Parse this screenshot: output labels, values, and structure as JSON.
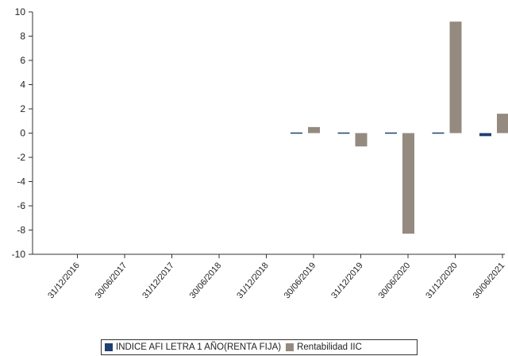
{
  "chart_data": {
    "type": "bar",
    "categories": [
      "31/12/2016",
      "30/06/2017",
      "31/12/2017",
      "30/06/2018",
      "31/12/2018",
      "30/06/2019",
      "31/12/2019",
      "30/06/2020",
      "31/12/2020",
      "30/06/2021"
    ],
    "series": [
      {
        "name": "INDICE AFI LETRA 1 AÑO(RENTA FIJA)",
        "color": "#1f3f6e",
        "values": [
          null,
          null,
          null,
          null,
          null,
          0.0,
          0.05,
          0.05,
          0.0,
          -0.25
        ]
      },
      {
        "name": "Rentabilidad IIC",
        "color": "#948a80",
        "values": [
          null,
          null,
          null,
          null,
          null,
          0.5,
          -1.1,
          -8.3,
          9.2,
          1.6
        ]
      }
    ],
    "title": "",
    "xlabel": "",
    "ylabel": "",
    "ylim": [
      -10,
      10
    ],
    "yticks": [
      10,
      8,
      6,
      4,
      2,
      0,
      -2,
      -4,
      -6,
      -8,
      -10
    ],
    "grid": false,
    "legend": "bottom"
  }
}
